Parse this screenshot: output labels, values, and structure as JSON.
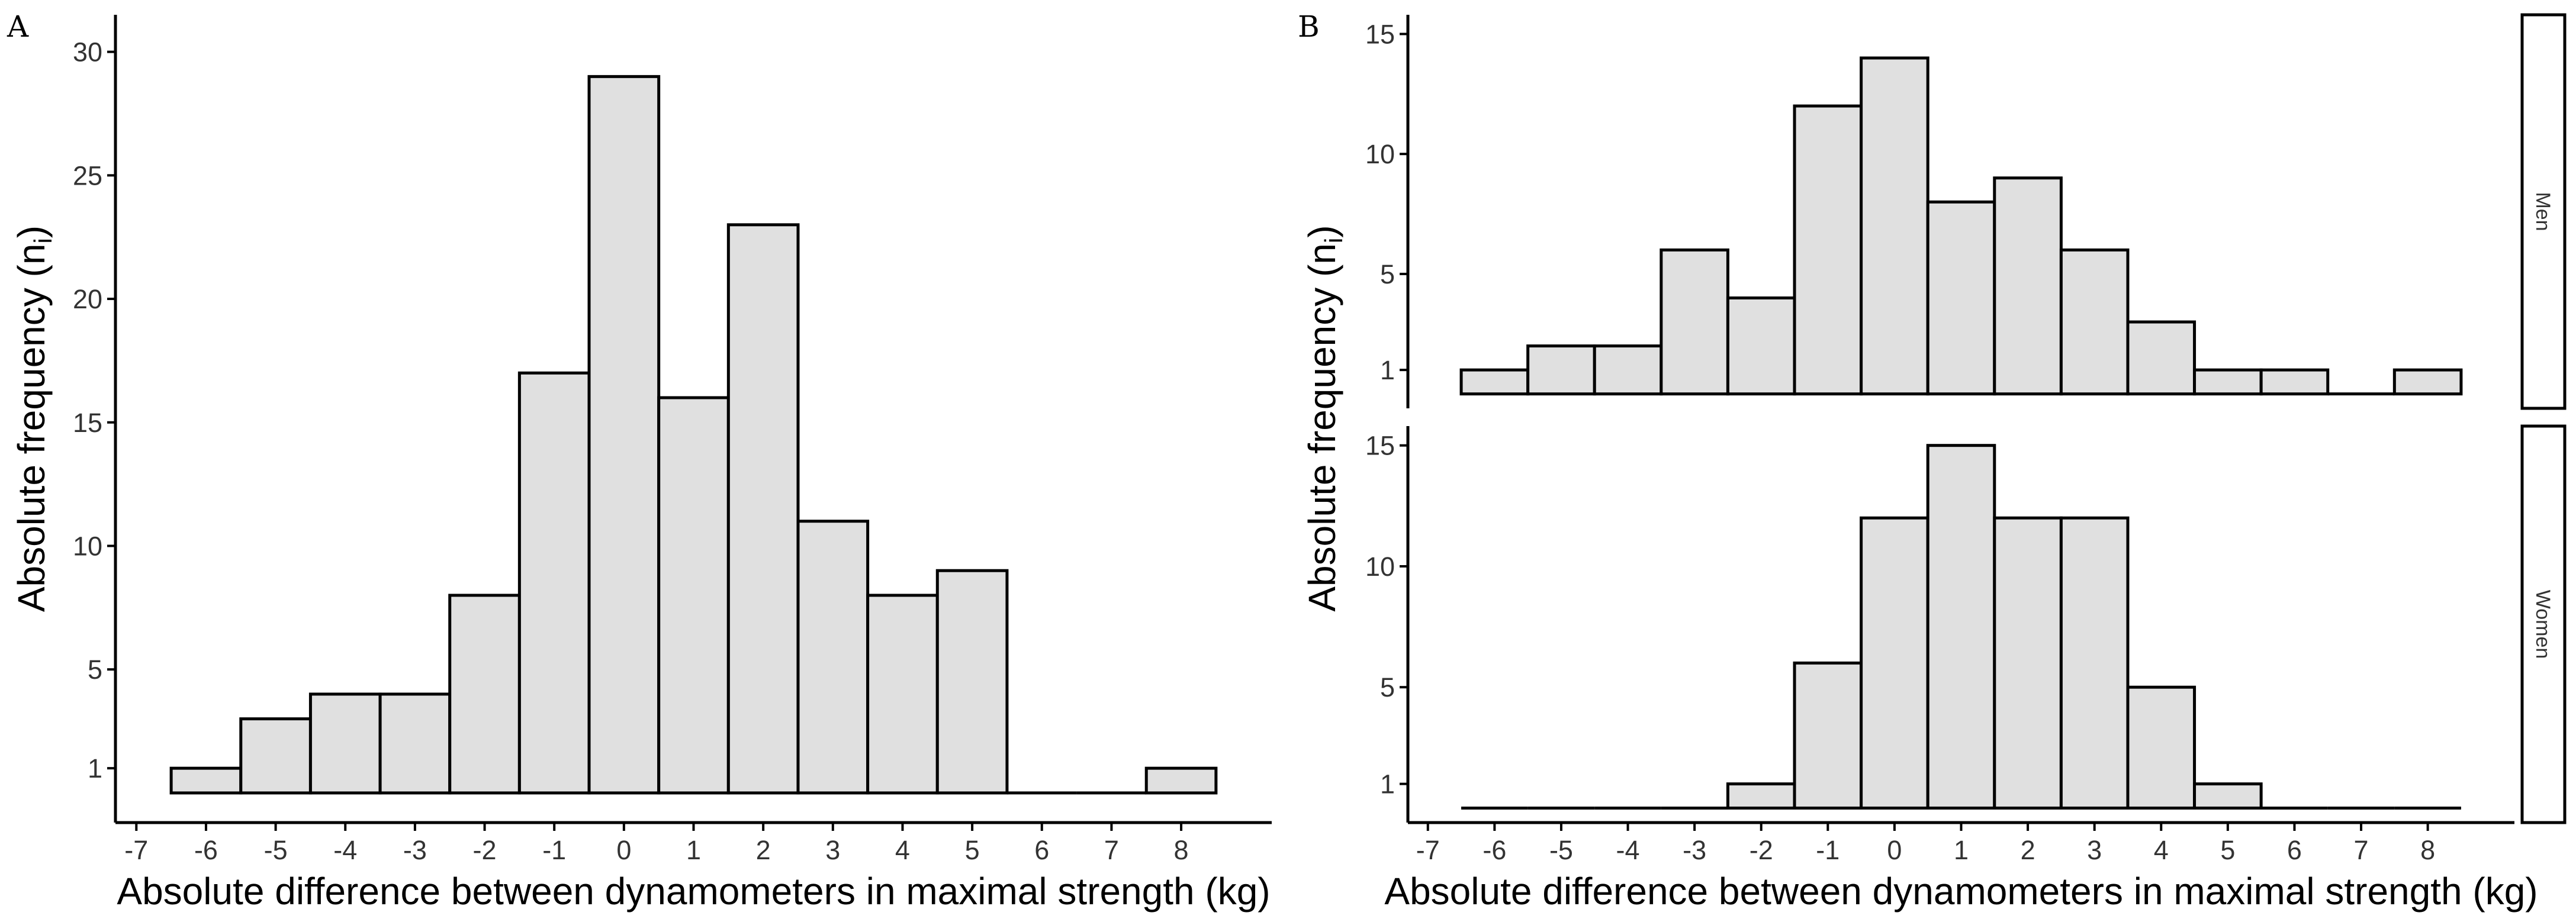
{
  "chart_data": [
    {
      "type": "bar",
      "panel_label": "A",
      "xlabel": "Absolute difference between dynamometers in maximal strength (kg)",
      "ylabel": "Absolute frequency (n",
      "ylabel_sub": "i",
      "ylabel_close": ")",
      "x": [
        -6,
        -5,
        -4,
        -3,
        -2,
        -1,
        0,
        1,
        2,
        3,
        4,
        5,
        6,
        7,
        8
      ],
      "values": [
        1,
        3,
        4,
        4,
        8,
        17,
        29,
        16,
        23,
        11,
        8,
        9,
        0,
        0,
        1
      ],
      "x_ticks": [
        "-7",
        "-6",
        "-5",
        "-4",
        "-3",
        "-2",
        "-1",
        "0",
        "1",
        "2",
        "3",
        "4",
        "5",
        "6",
        "7",
        "8"
      ],
      "y_ticks": [
        "1",
        "5",
        "10",
        "15",
        "20",
        "25",
        "30"
      ],
      "xlim": [
        -7.3,
        9.3
      ],
      "ylim": [
        -1.2,
        31.5
      ]
    },
    {
      "type": "bar",
      "panel_label": "B",
      "xlabel": "Absolute difference between dynamometers in maximal strength (kg)",
      "ylabel": "Absolute frequency (n",
      "ylabel_sub": "i",
      "ylabel_close": ")",
      "x": [
        -6,
        -5,
        -4,
        -3,
        -2,
        -1,
        0,
        1,
        2,
        3,
        4,
        5,
        6,
        7,
        8
      ],
      "x_ticks": [
        "-7",
        "-6",
        "-5",
        "-4",
        "-3",
        "-2",
        "-1",
        "0",
        "1",
        "2",
        "3",
        "4",
        "5",
        "6",
        "7",
        "8"
      ],
      "xlim": [
        -7.3,
        9.3
      ],
      "facets": [
        {
          "strip": "Men",
          "values": [
            1,
            2,
            2,
            6,
            4,
            12,
            14,
            8,
            9,
            6,
            3,
            1,
            1,
            0,
            1
          ],
          "y_ticks": [
            "1",
            "5",
            "10",
            "15"
          ],
          "ylim": [
            -0.6,
            15.8
          ]
        },
        {
          "strip": "Women",
          "values": [
            0,
            0,
            0,
            0,
            1,
            6,
            12,
            15,
            12,
            12,
            5,
            1,
            0,
            0,
            0
          ],
          "y_ticks": [
            "1",
            "5",
            "10",
            "15"
          ],
          "ylim": [
            -0.6,
            15.8
          ]
        }
      ]
    }
  ]
}
